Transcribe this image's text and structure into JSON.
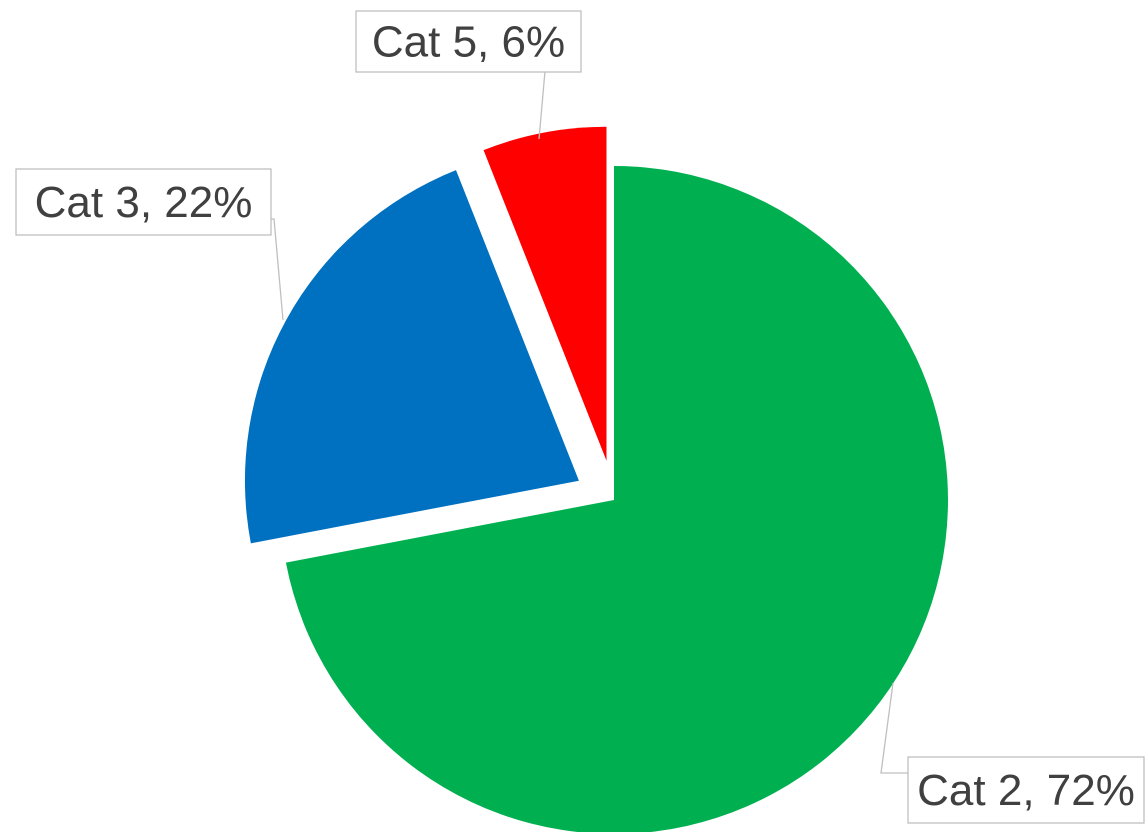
{
  "chart_data": {
    "type": "pie",
    "title": "",
    "slices": [
      {
        "category": "Cat 2",
        "percent": 72,
        "label": "Cat 2, 72%",
        "color": "#00B050",
        "exploded": false
      },
      {
        "category": "Cat 3",
        "percent": 22,
        "label": "Cat 3, 22%",
        "color": "#0070C0",
        "exploded": true
      },
      {
        "category": "Cat 5",
        "percent": 6,
        "label": "Cat 5, 6%",
        "color": "#FF0000",
        "exploded": true
      }
    ],
    "legend": "none",
    "data_labels": "callouts"
  }
}
